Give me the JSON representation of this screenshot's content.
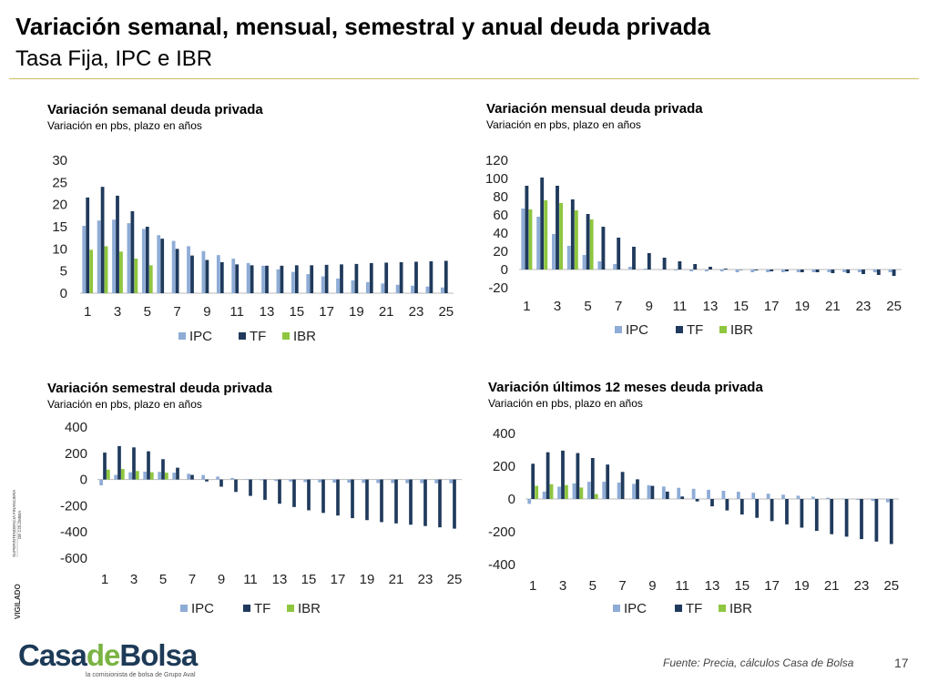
{
  "slide": {
    "title": "Variación semanal, mensual, semestral y anual deuda privada",
    "subtitle": "Tasa Fija, IPC e IBR",
    "source": "Fuente: Precia, cálculos Casa de Bolsa",
    "page_number": "17",
    "logo": {
      "part1": "Casa",
      "part2": "de",
      "part3": "Bolsa",
      "tagline": "la comisionista de bolsa de Grupo Aval"
    },
    "vigilado": "VIGILADO SUPERINTENDENCIA FINANCIERA DE COLOMBIA"
  },
  "colors": {
    "IPC": "#8eacd6",
    "TF": "#1f3a5c",
    "IBR": "#8ec63f",
    "axis": "#bbbbbb",
    "rule": "#c8bf62"
  },
  "chart_data": [
    {
      "type": "bar",
      "title": "Variación semanal deuda privada",
      "subtitle": "Variación en pbs, plazo en años",
      "categories": [
        1,
        2,
        3,
        4,
        5,
        6,
        7,
        8,
        9,
        10,
        11,
        12,
        13,
        14,
        15,
        16,
        17,
        18,
        19,
        20,
        21,
        22,
        23,
        24,
        25
      ],
      "tick_labels": [
        "1",
        "3",
        "5",
        "7",
        "9",
        "11",
        "13",
        "15",
        "17",
        "19",
        "21",
        "23",
        "25"
      ],
      "ylim": [
        0,
        30
      ],
      "yticks": [
        0,
        5,
        10,
        15,
        20,
        25,
        30
      ],
      "legend": [
        "IPC",
        "TF",
        "IBR"
      ],
      "series": [
        {
          "name": "IPC",
          "values": [
            15.2,
            16.4,
            16.6,
            15.8,
            14.5,
            13.1,
            11.8,
            10.6,
            9.5,
            8.6,
            7.8,
            6.8,
            6.2,
            5.4,
            4.8,
            4.3,
            3.8,
            3.3,
            2.9,
            2.5,
            2.2,
            1.9,
            1.7,
            1.5,
            1.3
          ]
        },
        {
          "name": "TF",
          "values": [
            21.6,
            24.0,
            22.0,
            18.5,
            15.0,
            12.3,
            10.0,
            8.5,
            7.5,
            7.0,
            6.5,
            6.3,
            6.2,
            6.2,
            6.3,
            6.3,
            6.4,
            6.5,
            6.6,
            6.8,
            6.9,
            7.0,
            7.1,
            7.2,
            7.3
          ]
        },
        {
          "name": "IBR",
          "values": [
            9.8,
            10.6,
            9.4,
            7.8,
            6.3,
            null,
            null,
            null,
            null,
            null,
            null,
            null,
            null,
            null,
            null,
            null,
            null,
            null,
            null,
            null,
            null,
            null,
            null,
            null,
            null
          ]
        }
      ]
    },
    {
      "type": "bar",
      "title": "Variación mensual deuda privada",
      "subtitle": "Variación en pbs, plazo en años",
      "categories": [
        1,
        2,
        3,
        4,
        5,
        6,
        7,
        8,
        9,
        10,
        11,
        12,
        13,
        14,
        15,
        16,
        17,
        18,
        19,
        20,
        21,
        22,
        23,
        24,
        25
      ],
      "tick_labels": [
        "1",
        "3",
        "5",
        "7",
        "9",
        "11",
        "13",
        "15",
        "17",
        "19",
        "21",
        "23",
        "25"
      ],
      "ylim": [
        -20,
        120
      ],
      "yticks": [
        -20,
        0,
        20,
        40,
        60,
        80,
        100,
        120
      ],
      "legend": [
        "IPC",
        "TF",
        "IBR"
      ],
      "series": [
        {
          "name": "IPC",
          "values": [
            67,
            58,
            39,
            26,
            16,
            9,
            6,
            3,
            1,
            0,
            -1,
            -2,
            -2,
            -2,
            -3,
            -3,
            -3,
            -3,
            -3,
            -3,
            -3,
            -3,
            -3,
            -3,
            -3
          ]
        },
        {
          "name": "TF",
          "values": [
            92,
            101,
            92,
            77,
            61,
            47,
            35,
            25,
            18,
            13,
            9,
            6,
            3,
            1,
            0,
            -1,
            -2,
            -2,
            -3,
            -3,
            -4,
            -4,
            -5,
            -6,
            -7
          ]
        },
        {
          "name": "IBR",
          "values": [
            66,
            76,
            73,
            65,
            55,
            null,
            null,
            null,
            null,
            null,
            null,
            null,
            null,
            null,
            null,
            null,
            null,
            null,
            null,
            null,
            null,
            null,
            null,
            null,
            null
          ]
        }
      ]
    },
    {
      "type": "bar",
      "title": "Variación semestral deuda privada",
      "subtitle": "Variación en pbs, plazo en años",
      "categories": [
        1,
        2,
        3,
        4,
        5,
        6,
        7,
        8,
        9,
        10,
        11,
        12,
        13,
        14,
        15,
        16,
        17,
        18,
        19,
        20,
        21,
        22,
        23,
        24,
        25
      ],
      "tick_labels": [
        "1",
        "3",
        "5",
        "7",
        "9",
        "11",
        "13",
        "15",
        "17",
        "19",
        "21",
        "23",
        "25"
      ],
      "ylim": [
        -600,
        400
      ],
      "yticks": [
        -600,
        -400,
        -200,
        0,
        200,
        400
      ],
      "legend": [
        "IPC",
        "TF",
        "IBR"
      ],
      "series": [
        {
          "name": "IPC",
          "values": [
            -45,
            35,
            55,
            60,
            58,
            52,
            44,
            34,
            22,
            12,
            2,
            -6,
            -12,
            -17,
            -20,
            -22,
            -24,
            -25,
            -26,
            -27,
            -27,
            -28,
            -28,
            -29,
            -29
          ]
        },
        {
          "name": "TF",
          "values": [
            205,
            255,
            245,
            215,
            155,
            90,
            35,
            -15,
            -55,
            -95,
            -125,
            -155,
            -185,
            -210,
            -235,
            -255,
            -275,
            -295,
            -310,
            -325,
            -335,
            -345,
            -355,
            -365,
            -375
          ]
        },
        {
          "name": "IBR",
          "values": [
            75,
            80,
            65,
            55,
            52,
            null,
            null,
            null,
            null,
            null,
            null,
            null,
            null,
            null,
            null,
            null,
            null,
            null,
            null,
            null,
            null,
            null,
            null,
            null,
            null
          ]
        }
      ]
    },
    {
      "type": "bar",
      "title": "Variación últimos 12 meses deuda privada",
      "subtitle": "Variación en pbs, plazo en años",
      "categories": [
        1,
        2,
        3,
        4,
        5,
        6,
        7,
        8,
        9,
        10,
        11,
        12,
        13,
        14,
        15,
        16,
        17,
        18,
        19,
        20,
        21,
        22,
        23,
        24,
        25
      ],
      "tick_labels": [
        "1",
        "3",
        "5",
        "7",
        "9",
        "11",
        "13",
        "15",
        "17",
        "19",
        "21",
        "23",
        "25"
      ],
      "ylim": [
        -400,
        400
      ],
      "yticks": [
        -400,
        -200,
        0,
        200,
        400
      ],
      "legend": [
        "IPC",
        "TF",
        "IBR"
      ],
      "series": [
        {
          "name": "IPC",
          "values": [
            -30,
            45,
            75,
            95,
            105,
            105,
            100,
            92,
            84,
            76,
            68,
            62,
            56,
            50,
            44,
            38,
            32,
            26,
            20,
            14,
            8,
            2,
            -5,
            -12,
            -20
          ]
        },
        {
          "name": "TF",
          "values": [
            215,
            285,
            295,
            280,
            250,
            210,
            165,
            120,
            80,
            45,
            15,
            -15,
            -45,
            -70,
            -95,
            -115,
            -135,
            -155,
            -175,
            -195,
            -215,
            -230,
            -245,
            -260,
            -275
          ]
        },
        {
          "name": "IBR",
          "values": [
            80,
            90,
            85,
            70,
            30,
            null,
            null,
            null,
            null,
            null,
            null,
            null,
            null,
            null,
            null,
            null,
            null,
            null,
            null,
            null,
            null,
            null,
            null,
            null,
            null
          ]
        }
      ]
    }
  ]
}
